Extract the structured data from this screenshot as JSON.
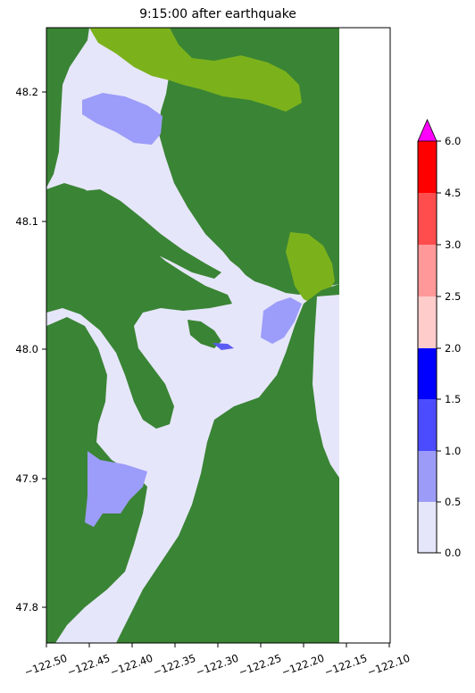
{
  "title": "9:15:00 after earthquake",
  "map": {
    "x_ticks": [
      "−122.50",
      "−122.45",
      "−122.40",
      "−122.35",
      "−122.30",
      "−122.25",
      "−122.20",
      "−122.15",
      "−122.10"
    ],
    "y_ticks": [
      "48.2",
      "48.1",
      "48.0",
      "47.9",
      "47.8"
    ],
    "colors": {
      "land": "#3a8435",
      "land_light": "#7bb21c",
      "water_0": "#e6e6fa",
      "water_1": "#9c9cfa",
      "water_2": "#5a5af5",
      "background": "#ffffff"
    }
  },
  "colorbar": {
    "ticks": [
      "0.0",
      "0.5",
      "1.0",
      "1.5",
      "2.0",
      "2.5",
      "3.0",
      "4.5",
      "6.0"
    ],
    "bins": [
      {
        "color": "#e6e6fa"
      },
      {
        "color": "#9c9cf8"
      },
      {
        "color": "#4c4cff"
      },
      {
        "color": "#0000ff"
      },
      {
        "color": "#ffcccc"
      },
      {
        "color": "#ff9999"
      },
      {
        "color": "#ff4d4d"
      },
      {
        "color": "#ff0000"
      }
    ],
    "extend_color": "#ff00ff"
  }
}
